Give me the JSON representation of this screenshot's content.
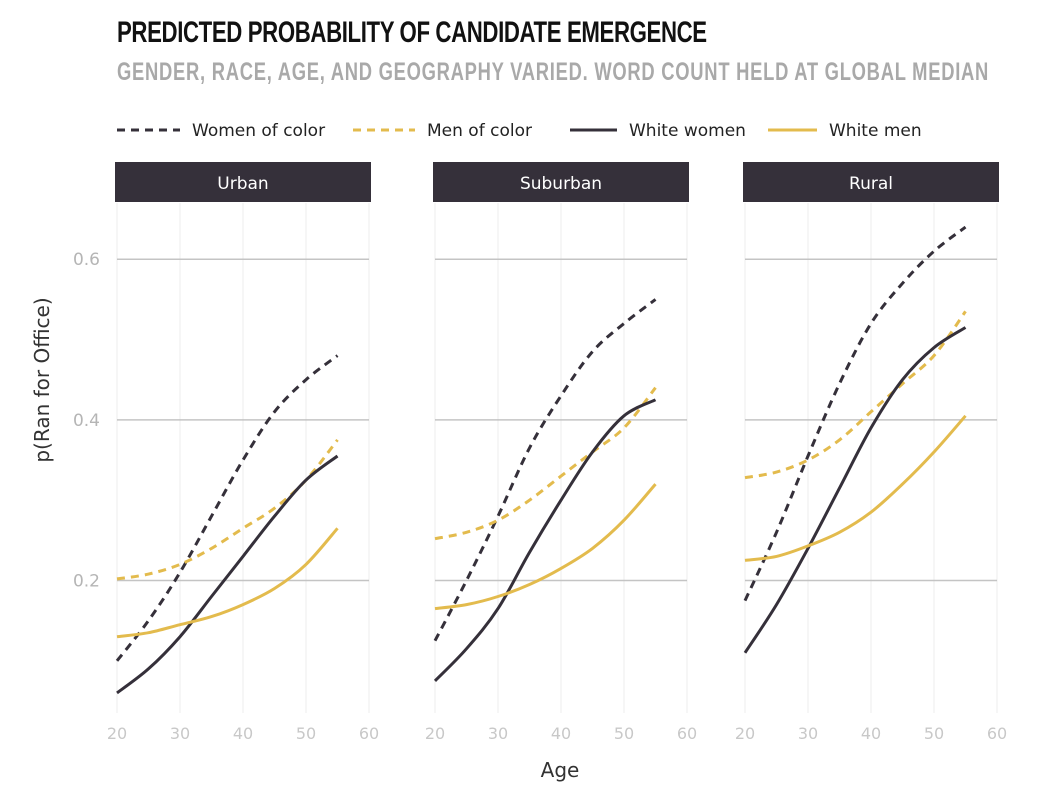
{
  "chart_data": {
    "type": "line",
    "title": "PREDICTED PROBABILITY OF CANDIDATE EMERGENCE",
    "subtitle": "GENDER, RACE, AGE, AND GEOGRAPHY VARIED. WORD COUNT HELD AT GLOBAL MEDIAN",
    "xlabel": "Age",
    "ylabel": "p(Ran for Office)",
    "xlim": [
      20,
      60
    ],
    "ylim": [
      0.035,
      0.67
    ],
    "x_ticks": [
      20,
      30,
      40,
      50,
      60
    ],
    "y_ticks": [
      0.2,
      0.4,
      0.6
    ],
    "y_tick_labels": [
      "0.2",
      "0.4",
      "0.6"
    ],
    "legend_position": "top",
    "series_styles": [
      {
        "name": "Women of color",
        "color": "#35303a",
        "dashed": true
      },
      {
        "name": "Men of color",
        "color": "#e3bb4d",
        "dashed": true
      },
      {
        "name": "White women",
        "color": "#35303a",
        "dashed": false
      },
      {
        "name": "White men",
        "color": "#e3bb4d",
        "dashed": false
      }
    ],
    "x": [
      20,
      25,
      30,
      35,
      40,
      45,
      50,
      55
    ],
    "panels": [
      {
        "name": "Urban",
        "series": [
          {
            "name": "Women of color",
            "values": [
              0.1,
              0.15,
              0.21,
              0.28,
              0.35,
              0.41,
              0.45,
              0.48
            ]
          },
          {
            "name": "Men of color",
            "values": [
              0.202,
              0.208,
              0.22,
              0.24,
              0.265,
              0.29,
              0.325,
              0.375
            ]
          },
          {
            "name": "White women",
            "values": [
              0.06,
              0.09,
              0.13,
              0.18,
              0.23,
              0.28,
              0.325,
              0.355
            ]
          },
          {
            "name": "White men",
            "values": [
              0.13,
              0.135,
              0.145,
              0.155,
              0.17,
              0.19,
              0.22,
              0.265
            ]
          }
        ]
      },
      {
        "name": "Suburban",
        "series": [
          {
            "name": "Women of color",
            "values": [
              0.125,
              0.2,
              0.28,
              0.365,
              0.43,
              0.485,
              0.52,
              0.55
            ]
          },
          {
            "name": "Men of color",
            "values": [
              0.252,
              0.26,
              0.275,
              0.3,
              0.33,
              0.36,
              0.39,
              0.44
            ]
          },
          {
            "name": "White women",
            "values": [
              0.075,
              0.115,
              0.165,
              0.235,
              0.3,
              0.36,
              0.405,
              0.425
            ]
          },
          {
            "name": "White men",
            "values": [
              0.165,
              0.17,
              0.18,
              0.195,
              0.215,
              0.24,
              0.275,
              0.32
            ]
          }
        ]
      },
      {
        "name": "Rural",
        "series": [
          {
            "name": "Women of color",
            "values": [
              0.175,
              0.26,
              0.355,
              0.445,
              0.52,
              0.57,
              0.61,
              0.64
            ]
          },
          {
            "name": "Men of color",
            "values": [
              0.328,
              0.335,
              0.35,
              0.375,
              0.41,
              0.445,
              0.48,
              0.535
            ]
          },
          {
            "name": "White women",
            "values": [
              0.11,
              0.17,
              0.24,
              0.315,
              0.39,
              0.45,
              0.49,
              0.515
            ]
          },
          {
            "name": "White men",
            "values": [
              0.225,
              0.23,
              0.243,
              0.26,
              0.285,
              0.32,
              0.36,
              0.405
            ]
          }
        ]
      }
    ]
  }
}
